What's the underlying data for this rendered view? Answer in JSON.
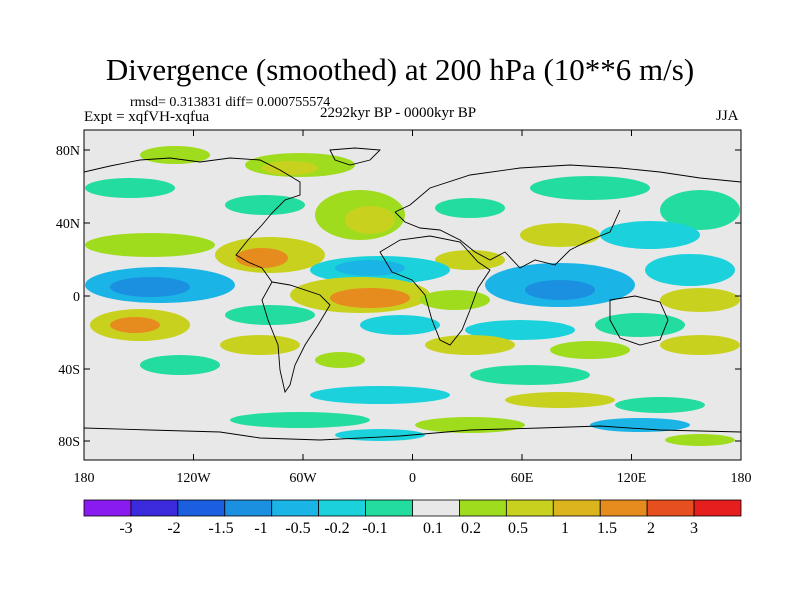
{
  "title": "Divergence (smoothed) at 200 hPa (10**6 m/s)",
  "stats": "rmsd= 0.313831 diff= 0.000755574",
  "experiment": "Expt = xqfVH-xqfua",
  "period": "2292kyr BP - 0000kyr BP",
  "season": "JJA",
  "axes": {
    "y_ticks": [
      "80N",
      "40N",
      "0",
      "40S",
      "80S"
    ],
    "x_ticks": [
      "180",
      "120W",
      "60W",
      "0",
      "60E",
      "120E",
      "180"
    ]
  },
  "colorbar": {
    "labels": [
      "-3",
      "-2",
      "-1.5",
      "-1",
      "-0.5",
      "-0.2",
      "-0.1",
      "0.1",
      "0.2",
      "0.5",
      "1",
      "1.5",
      "2",
      "3"
    ],
    "colors": [
      "#8a1bf0",
      "#3c2bdc",
      "#1b5fe0",
      "#1b90e0",
      "#1bb4e6",
      "#1bd2dc",
      "#22dca0",
      "#e8e8e8",
      "#a0dc1e",
      "#c8d21e",
      "#dcb41e",
      "#e68c1e",
      "#e6501e",
      "#e61e1e"
    ]
  },
  "map_colors": {
    "background": "#e8e8e8",
    "coast": "#000000"
  }
}
